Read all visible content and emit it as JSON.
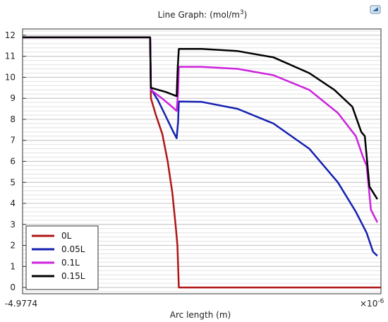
{
  "chart_data": {
    "type": "line",
    "title_prefix": "Line Graph:  (mol/m",
    "title_superscript": "3",
    "title_suffix": ")",
    "xlabel": "Arc length (m)",
    "x_tick_left": "-4.9774",
    "x_multiplier_base": "×10",
    "x_multiplier_exp": "-6",
    "ylabel": "",
    "ylim": [
      -0.3,
      12.3
    ],
    "xlim": [
      0,
      1
    ],
    "y_ticks": [
      0,
      1,
      2,
      3,
      4,
      5,
      6,
      7,
      8,
      9,
      10,
      11,
      12
    ],
    "grid": true,
    "legend_position": "bottom-left",
    "series": [
      {
        "name": "0L",
        "color": "#b01515",
        "x": [
          0.0,
          0.356,
          0.358,
          0.372,
          0.39,
          0.405,
          0.418,
          0.428,
          0.432,
          0.434,
          0.436,
          1.0
        ],
        "y": [
          11.9,
          11.9,
          9.0,
          8.2,
          7.3,
          6.0,
          4.5,
          2.8,
          2.0,
          1.0,
          0.0,
          0.0
        ]
      },
      {
        "name": "0.05L",
        "color": "#1520b0",
        "x": [
          0.0,
          0.356,
          0.358,
          0.378,
          0.398,
          0.418,
          0.43,
          0.434,
          0.436,
          0.5,
          0.6,
          0.7,
          0.8,
          0.88,
          0.93,
          0.96,
          0.978,
          0.99
        ],
        "y": [
          11.9,
          11.9,
          9.45,
          8.9,
          8.2,
          7.5,
          7.1,
          7.9,
          8.85,
          8.83,
          8.5,
          7.8,
          6.6,
          5.0,
          3.6,
          2.6,
          1.7,
          1.5
        ]
      },
      {
        "name": "0.1L",
        "color": "#cc22dd",
        "x": [
          0.0,
          0.356,
          0.358,
          0.385,
          0.41,
          0.43,
          0.434,
          0.436,
          0.5,
          0.6,
          0.7,
          0.8,
          0.88,
          0.93,
          0.95,
          0.96,
          0.972,
          0.99
        ],
        "y": [
          11.9,
          11.9,
          9.4,
          9.05,
          8.7,
          8.4,
          9.3,
          10.5,
          10.5,
          10.4,
          10.1,
          9.4,
          8.3,
          7.2,
          6.2,
          5.8,
          3.7,
          3.1
        ]
      },
      {
        "name": "0.15L",
        "color": "#000000",
        "x": [
          0.0,
          0.356,
          0.358,
          0.4,
          0.43,
          0.433,
          0.436,
          0.5,
          0.6,
          0.7,
          0.8,
          0.87,
          0.92,
          0.945,
          0.955,
          0.968,
          0.99
        ],
        "y": [
          11.9,
          11.9,
          9.5,
          9.3,
          9.1,
          10.5,
          11.35,
          11.35,
          11.25,
          10.95,
          10.2,
          9.4,
          8.6,
          7.4,
          7.2,
          4.8,
          4.2
        ]
      }
    ]
  }
}
